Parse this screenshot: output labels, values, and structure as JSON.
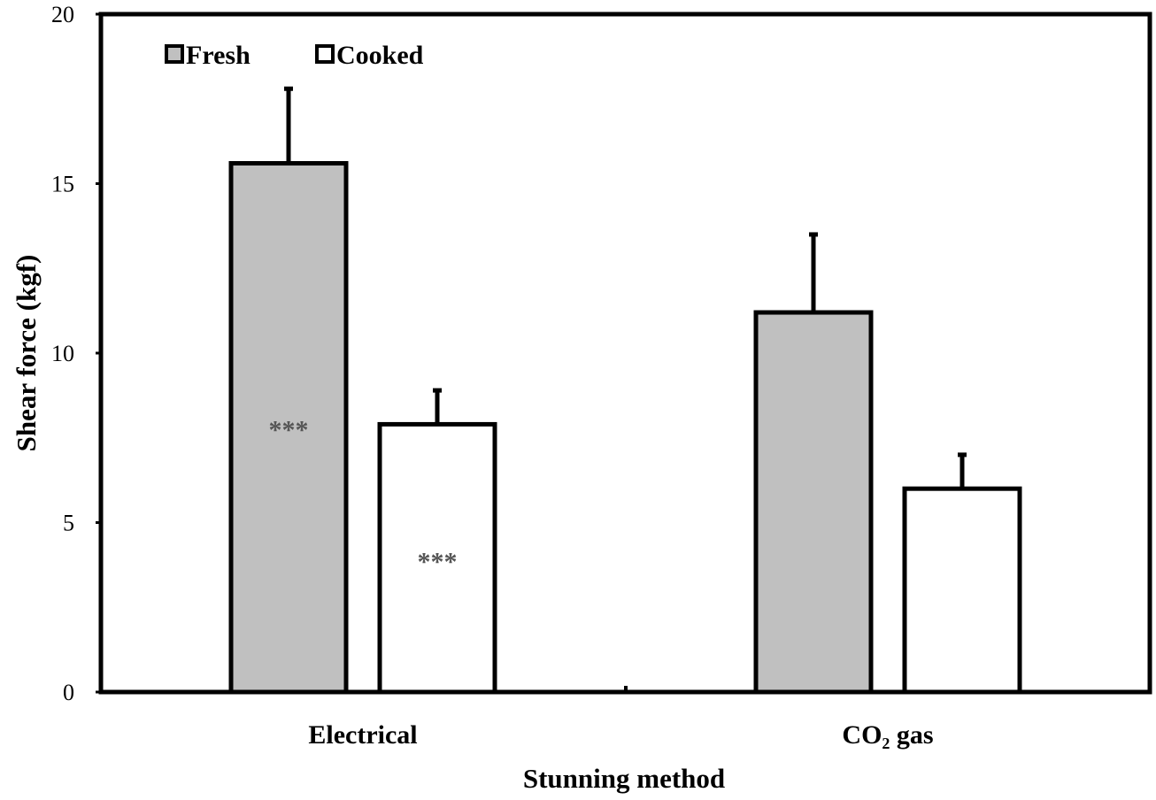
{
  "chart_data": {
    "type": "bar",
    "xlabel": "Stunning method",
    "ylabel": "Shear force (kgf)",
    "ylim": [
      0,
      20
    ],
    "yticks": [
      0,
      5,
      10,
      15,
      20
    ],
    "categories": [
      "Electrical",
      "CO₂  gas"
    ],
    "legend_position": "top-left",
    "grid": false,
    "series": [
      {
        "name": "Fresh",
        "color": "#c0c0c0",
        "values": [
          15.6,
          11.2
        ],
        "errors": [
          2.2,
          2.3
        ]
      },
      {
        "name": "Cooked",
        "color": "#ffffff",
        "values": [
          7.9,
          6.0
        ],
        "errors": [
          1.0,
          1.0
        ]
      }
    ],
    "annotations": [
      {
        "text": "***",
        "series": 0,
        "category": 0,
        "y": 7.8
      },
      {
        "text": "***",
        "series": 1,
        "category": 0,
        "y": 3.9
      }
    ]
  }
}
